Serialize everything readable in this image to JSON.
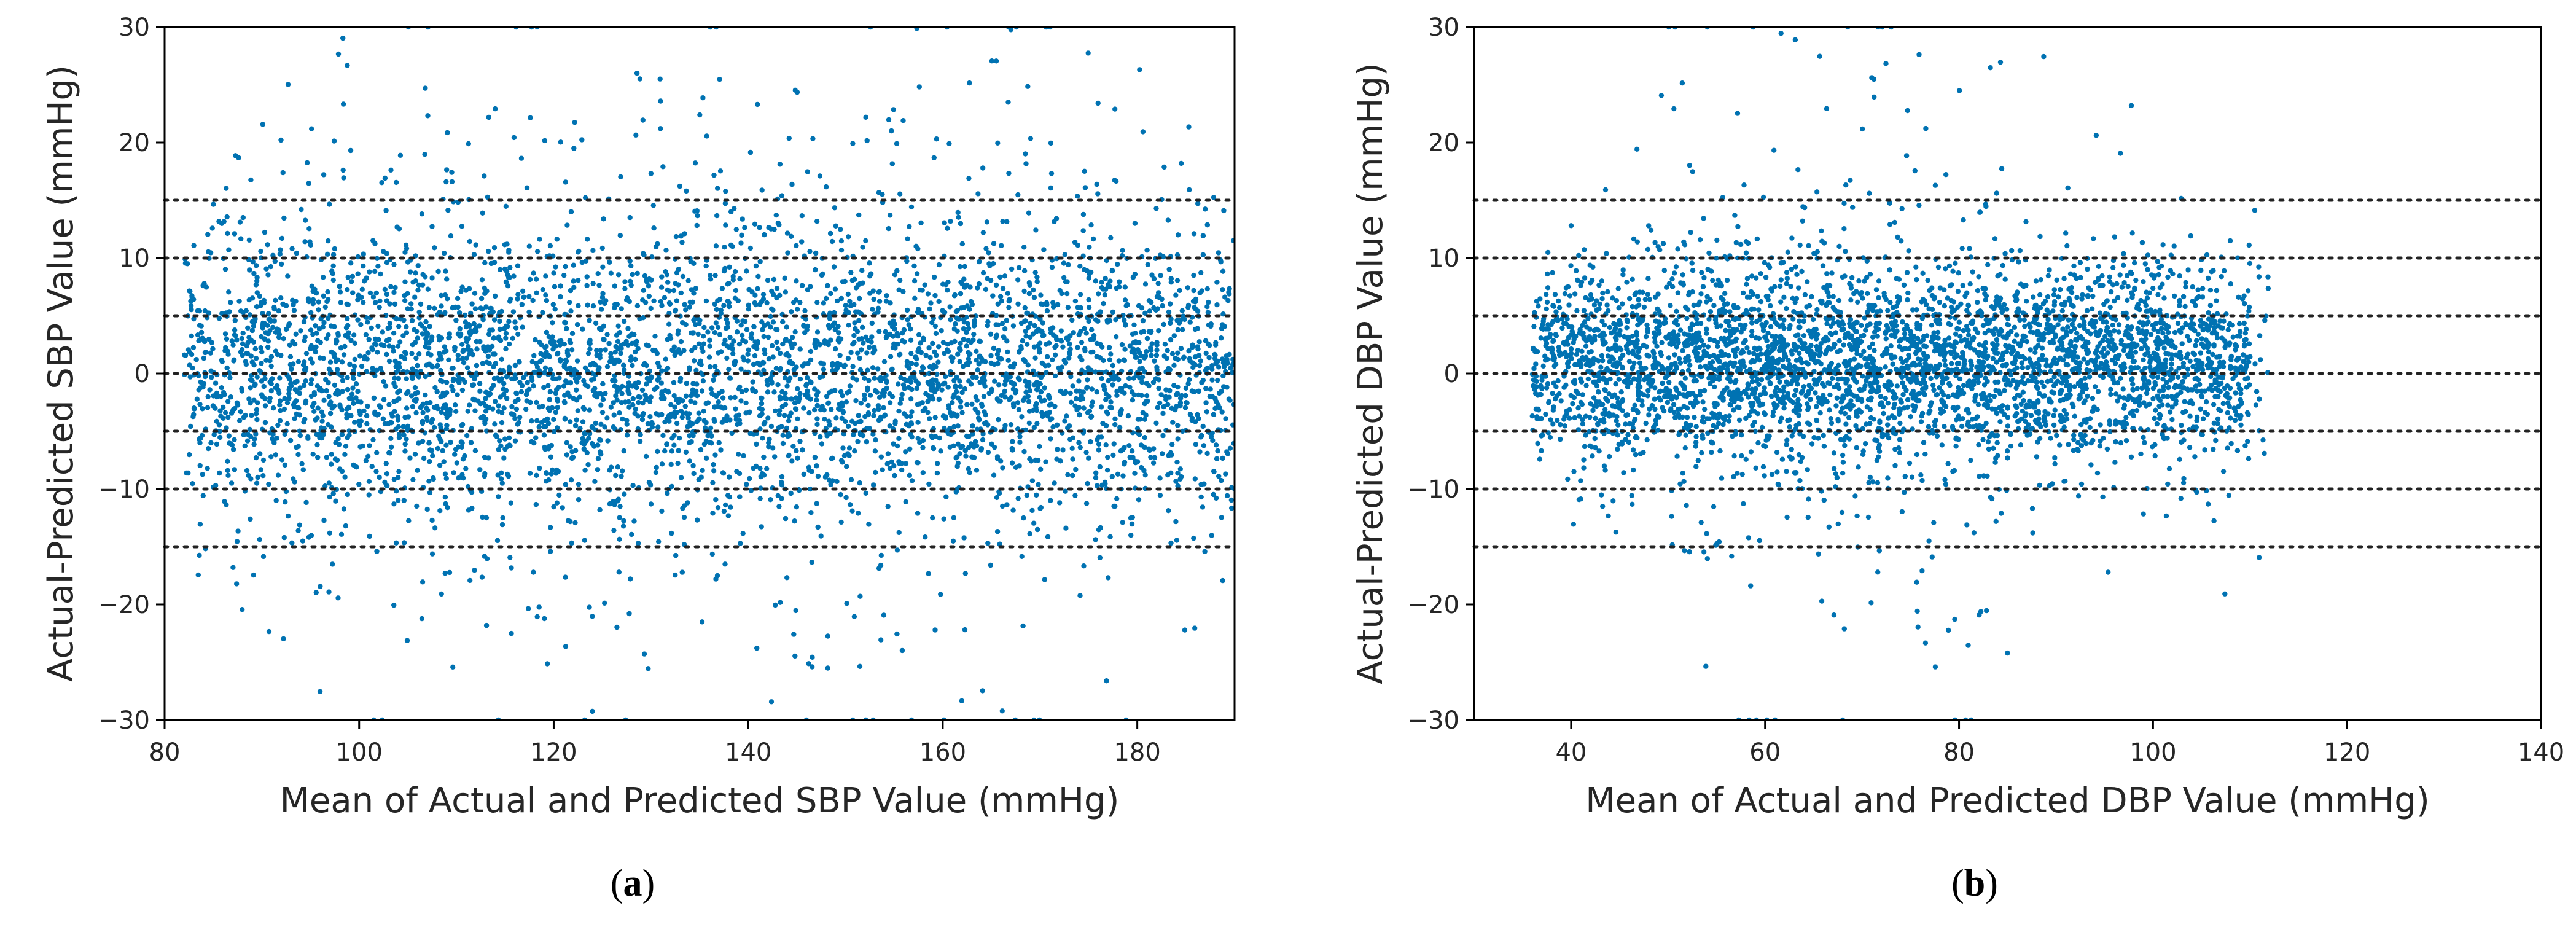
{
  "colors": {
    "points": "#0072b2",
    "reference_lines": "#222222",
    "axes": "#000000"
  },
  "chart_data": [
    {
      "type": "scatter",
      "panel_label": "(a)",
      "xlabel": "Mean of Actual and Predicted SBP Value (mmHg)",
      "ylabel": "Actual-Predicted SBP Value (mmHg)",
      "xlim": [
        80,
        190
      ],
      "ylim": [
        -30,
        30
      ],
      "xticks": [
        80,
        100,
        120,
        140,
        160,
        180
      ],
      "yticks": [
        -30,
        -20,
        -10,
        0,
        10,
        20,
        30
      ],
      "reference_lines_y": [
        15,
        10,
        5,
        0,
        -5,
        -10,
        -15
      ],
      "reference_line_style": "dotted",
      "grid": false,
      "legend": "none",
      "point_summary": "Dense cloud of several thousand points centered near 0 mmHg, mostly within ±10 mmHg, spanning x ≈ 82–190 mmHg, with sparser outliers reaching ±30 mmHg.",
      "clusters": [
        {
          "x_range": [
            82,
            190
          ],
          "y_center": 0,
          "y_spread": 5.5,
          "count": 3500
        },
        {
          "x_range": [
            82,
            190
          ],
          "y_center": 0,
          "y_spread": 11,
          "count": 900
        },
        {
          "x_range": [
            95,
            175
          ],
          "y_center": 2,
          "y_spread": 18,
          "count": 220
        }
      ]
    },
    {
      "type": "scatter",
      "panel_label": "(b)",
      "xlabel": "Mean of Actual and Predicted DBP Value (mmHg)",
      "ylabel": "Actual-Predicted DBP Value (mmHg)",
      "xlim": [
        30,
        140
      ],
      "ylim": [
        -30,
        30
      ],
      "xticks": [
        40,
        60,
        80,
        100,
        120,
        140
      ],
      "yticks": [
        -30,
        -20,
        -10,
        0,
        10,
        20,
        30
      ],
      "reference_lines_y": [
        15,
        10,
        5,
        0,
        -5,
        -10,
        -15
      ],
      "reference_line_style": "dotted",
      "grid": false,
      "legend": "none",
      "point_summary": "Dense cloud of points centered near 0 mmHg, mostly within ±7 mmHg, spanning x ≈ 36–110 mmHg, with sparse outliers up to about ±30 mmHg around x ≈ 55–80.",
      "clusters": [
        {
          "x_range": [
            36,
            110
          ],
          "y_center": 1,
          "y_spread": 3.8,
          "count": 3200
        },
        {
          "x_range": [
            40,
            112
          ],
          "y_center": 1,
          "y_spread": 7,
          "count": 700
        },
        {
          "x_range": [
            50,
            85
          ],
          "y_center": 0,
          "y_spread": 15,
          "count": 200
        }
      ]
    }
  ]
}
